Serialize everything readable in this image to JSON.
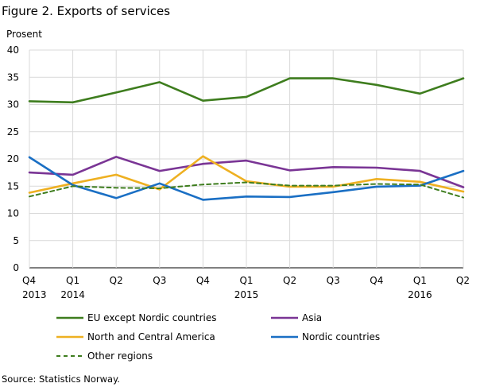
{
  "title": "Figure 2. Exports of services",
  "source": "Source: Statistics Norway.",
  "chart_data": {
    "type": "line",
    "ylabel": "Prosent",
    "ylim": [
      0,
      40
    ],
    "yticks": [
      0,
      5,
      10,
      15,
      20,
      25,
      30,
      35,
      40
    ],
    "grid": true,
    "legend_position": "bottom",
    "categories": [
      {
        "line1": "Q4",
        "line2": "2013"
      },
      {
        "line1": "Q1",
        "line2": "2014"
      },
      {
        "line1": "Q2",
        "line2": ""
      },
      {
        "line1": "Q3",
        "line2": ""
      },
      {
        "line1": "Q4",
        "line2": ""
      },
      {
        "line1": "Q1",
        "line2": "2015"
      },
      {
        "line1": "Q2",
        "line2": ""
      },
      {
        "line1": "Q3",
        "line2": ""
      },
      {
        "line1": "Q4",
        "line2": ""
      },
      {
        "line1": "Q1",
        "line2": "2016"
      },
      {
        "line1": "Q2",
        "line2": ""
      }
    ],
    "series": [
      {
        "name": "EU except Nordic countries",
        "color": "#3e7d1e",
        "dashed": false,
        "values": [
          30.6,
          30.4,
          32.2,
          34.1,
          30.7,
          31.4,
          34.8,
          34.8,
          33.6,
          32.0,
          34.8
        ]
      },
      {
        "name": "Asia",
        "color": "#7a3595",
        "dashed": false,
        "values": [
          17.5,
          17.1,
          20.4,
          17.8,
          19.1,
          19.7,
          17.9,
          18.5,
          18.4,
          17.8,
          14.8
        ]
      },
      {
        "name": "North and Central America",
        "color": "#eeb021",
        "dashed": false,
        "values": [
          13.8,
          15.5,
          17.1,
          14.4,
          20.5,
          15.9,
          14.9,
          14.9,
          16.3,
          15.8,
          14.0
        ]
      },
      {
        "name": "Nordic countries",
        "color": "#1a6fc4",
        "dashed": false,
        "values": [
          20.3,
          15.2,
          12.8,
          15.5,
          12.5,
          13.1,
          13.0,
          13.9,
          14.9,
          15.1,
          17.8
        ]
      },
      {
        "name": "Other regions",
        "color": "#3e7d1e",
        "dashed": true,
        "values": [
          13.1,
          15.0,
          14.7,
          14.6,
          15.3,
          15.7,
          15.1,
          15.1,
          15.4,
          15.3,
          12.9
        ]
      }
    ]
  }
}
